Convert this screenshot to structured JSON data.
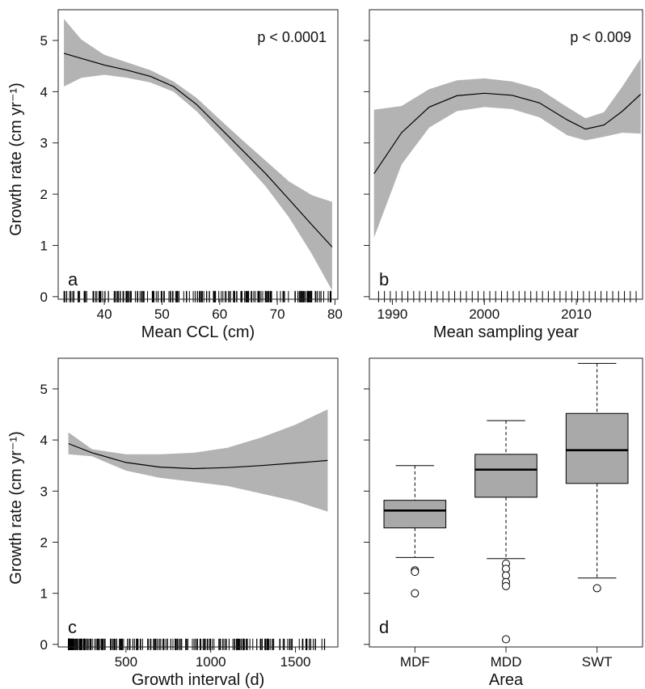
{
  "y_axis_title": "Growth rate (cm yr⁻¹)",
  "chart_data": [
    {
      "panel": "a",
      "type": "line",
      "xlabel": "Mean CCL (cm)",
      "ylabel": "Growth rate (cm yr⁻¹)",
      "annotation": "p < 0.0001",
      "xlim": [
        32,
        80.5
      ],
      "ylim": [
        -0.05,
        5.6
      ],
      "xticks": [
        40,
        50,
        60,
        70,
        80
      ],
      "yticks": [
        0,
        1,
        2,
        3,
        4,
        5
      ],
      "fit": {
        "x": [
          33,
          36,
          40,
          44,
          48,
          52,
          56,
          60,
          64,
          68,
          72,
          76,
          79.5
        ],
        "y": [
          4.75,
          4.65,
          4.52,
          4.42,
          4.3,
          4.1,
          3.75,
          3.3,
          2.85,
          2.4,
          1.9,
          1.4,
          0.97
        ]
      },
      "band_upper": [
        5.42,
        5.02,
        4.72,
        4.57,
        4.42,
        4.2,
        3.88,
        3.46,
        3.05,
        2.65,
        2.25,
        1.98,
        1.85
      ],
      "band_lower": [
        4.1,
        4.27,
        4.33,
        4.27,
        4.18,
        4.0,
        3.62,
        3.14,
        2.65,
        2.15,
        1.55,
        0.83,
        0.12
      ],
      "rug_range": [
        33,
        79.5
      ]
    },
    {
      "panel": "b",
      "type": "line",
      "xlabel": "Mean sampling year",
      "annotation": "p < 0.009",
      "xlim": [
        1987.5,
        2017.2
      ],
      "ylim": [
        -0.05,
        5.6
      ],
      "xticks": [
        1990,
        2000,
        2010
      ],
      "yticks": [
        0,
        1,
        2,
        3,
        4,
        5
      ],
      "fit": {
        "x": [
          1988,
          1991,
          1994,
          1997,
          2000,
          2003,
          2006,
          2009,
          2011,
          2013,
          2015,
          2017
        ],
        "y": [
          2.4,
          3.2,
          3.7,
          3.92,
          3.97,
          3.93,
          3.78,
          3.45,
          3.27,
          3.35,
          3.62,
          3.95
        ]
      },
      "band_upper": [
        3.65,
        3.72,
        4.05,
        4.22,
        4.26,
        4.2,
        4.05,
        3.7,
        3.48,
        3.6,
        4.1,
        4.65
      ],
      "band_lower": [
        1.15,
        2.58,
        3.3,
        3.62,
        3.7,
        3.66,
        3.5,
        3.15,
        3.05,
        3.12,
        3.2,
        3.18
      ],
      "rug_range": [
        1988.5,
        2016.5
      ]
    },
    {
      "panel": "c",
      "type": "line",
      "xlabel": "Growth interval (d)",
      "ylabel": "Growth rate (cm yr⁻¹)",
      "xlim": [
        100,
        1750
      ],
      "ylim": [
        -0.05,
        5.6
      ],
      "xticks": [
        500,
        1000,
        1500
      ],
      "yticks": [
        0,
        1,
        2,
        3,
        4,
        5
      ],
      "fit": {
        "x": [
          160,
          300,
          500,
          700,
          900,
          1100,
          1300,
          1500,
          1690
        ],
        "y": [
          3.93,
          3.75,
          3.56,
          3.47,
          3.44,
          3.46,
          3.5,
          3.55,
          3.6
        ]
      },
      "band_upper": [
        4.15,
        3.82,
        3.72,
        3.72,
        3.75,
        3.85,
        4.05,
        4.3,
        4.6
      ],
      "band_lower": [
        3.72,
        3.68,
        3.4,
        3.26,
        3.18,
        3.1,
        2.95,
        2.8,
        2.6
      ],
      "rug_range": [
        160,
        1690
      ]
    },
    {
      "panel": "d",
      "type": "box",
      "xlabel": "Area",
      "ylim": [
        -0.05,
        5.6
      ],
      "yticks": [
        0,
        1,
        2,
        3,
        4,
        5
      ],
      "categories": [
        "MDF",
        "MDD",
        "SWT"
      ],
      "boxes": [
        {
          "whisker_low": 1.7,
          "q1": 2.28,
          "median": 2.62,
          "q3": 2.82,
          "whisker_high": 3.5,
          "outliers": [
            1.45,
            1.42,
            1.0
          ]
        },
        {
          "whisker_low": 1.68,
          "q1": 2.88,
          "median": 3.42,
          "q3": 3.72,
          "whisker_high": 4.38,
          "outliers": [
            1.58,
            1.48,
            1.35,
            1.22,
            1.14,
            0.1
          ]
        },
        {
          "whisker_low": 1.3,
          "q1": 3.15,
          "median": 3.8,
          "q3": 4.52,
          "whisker_high": 5.5,
          "outliers": [
            1.1
          ]
        }
      ]
    }
  ],
  "colors": {
    "band": "#b3b3b3",
    "box_fill": "#a9a9a9",
    "line": "#000000",
    "frame": "#222222"
  }
}
